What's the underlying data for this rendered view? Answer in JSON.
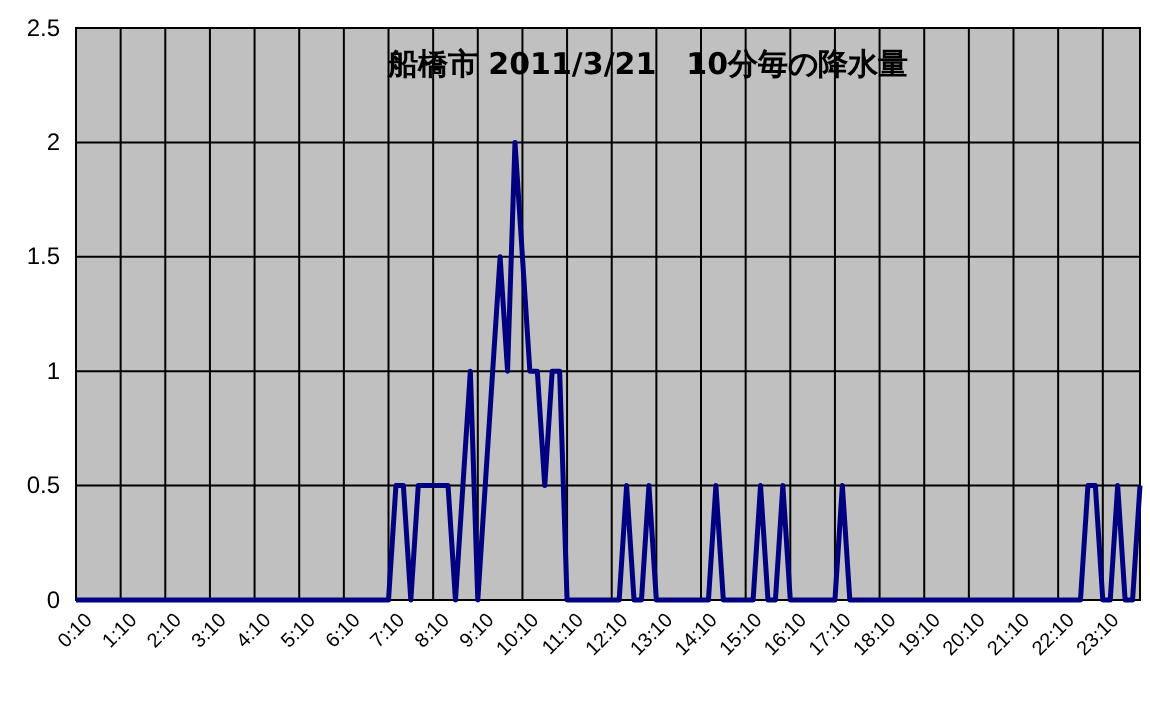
{
  "chart_data": {
    "type": "line",
    "title": "船橋市 2011/3/21　10分毎の降水量",
    "categories": [
      "0:10",
      null,
      null,
      null,
      null,
      null,
      "1:10",
      null,
      null,
      null,
      null,
      null,
      "2:10",
      null,
      null,
      null,
      null,
      null,
      "3:10",
      null,
      null,
      null,
      null,
      null,
      "4:10",
      null,
      null,
      null,
      null,
      null,
      "5:10",
      null,
      null,
      null,
      null,
      null,
      "6:10",
      null,
      null,
      null,
      null,
      null,
      "7:10",
      null,
      null,
      null,
      null,
      null,
      "8:10",
      null,
      null,
      null,
      null,
      null,
      "9:10",
      null,
      null,
      null,
      null,
      null,
      "10:10",
      null,
      null,
      null,
      null,
      null,
      "11:10",
      null,
      null,
      null,
      null,
      null,
      "12:10",
      null,
      null,
      null,
      null,
      null,
      "13:10",
      null,
      null,
      null,
      null,
      null,
      "14:10",
      null,
      null,
      null,
      null,
      null,
      "15:10",
      null,
      null,
      null,
      null,
      null,
      "16:10",
      null,
      null,
      null,
      null,
      null,
      "17:10",
      null,
      null,
      null,
      null,
      null,
      "18:10",
      null,
      null,
      null,
      null,
      null,
      "19:10",
      null,
      null,
      null,
      null,
      null,
      "20:10",
      null,
      null,
      null,
      null,
      null,
      "21:10",
      null,
      null,
      null,
      null,
      null,
      "22:10",
      null,
      null,
      null,
      null,
      null,
      "23:10",
      null,
      null,
      null,
      null,
      null
    ],
    "series": [
      {
        "color": "#000080",
        "values": [
          0,
          0,
          0,
          0,
          0,
          0,
          0,
          0,
          0,
          0,
          0,
          0,
          0,
          0,
          0,
          0,
          0,
          0,
          0,
          0,
          0,
          0,
          0,
          0,
          0,
          0,
          0,
          0,
          0,
          0,
          0,
          0,
          0,
          0,
          0,
          0,
          0,
          0,
          0,
          0,
          0,
          0,
          0,
          0.5,
          0.5,
          0,
          0.5,
          0.5,
          0.5,
          0.5,
          0.5,
          0,
          0.5,
          1,
          0,
          0.5,
          1,
          1.5,
          1,
          2,
          1.5,
          1,
          1,
          0.5,
          1,
          1,
          0,
          0,
          0,
          0,
          0,
          0,
          0,
          0,
          0.5,
          0,
          0,
          0.5,
          0,
          0,
          0,
          0,
          0,
          0,
          0,
          0,
          0.5,
          0,
          0,
          0,
          0,
          0,
          0.5,
          0,
          0,
          0.5,
          0,
          0,
          0,
          0,
          0,
          0,
          0,
          0.5,
          0,
          0,
          0,
          0,
          0,
          0,
          0,
          0,
          0,
          0,
          0,
          0,
          0,
          0,
          0,
          0,
          0,
          0,
          0,
          0,
          0,
          0,
          0,
          0,
          0,
          0,
          0,
          0,
          0,
          0,
          0,
          0,
          0.5,
          0.5,
          0,
          0,
          0.5,
          0,
          0,
          0.5
        ]
      }
    ],
    "ylim": [
      0,
      2.5
    ],
    "yticks": [
      0,
      0.5,
      1,
      1.5,
      2,
      2.5
    ],
    "grid": true,
    "marker": "none",
    "line_style": "solid"
  }
}
